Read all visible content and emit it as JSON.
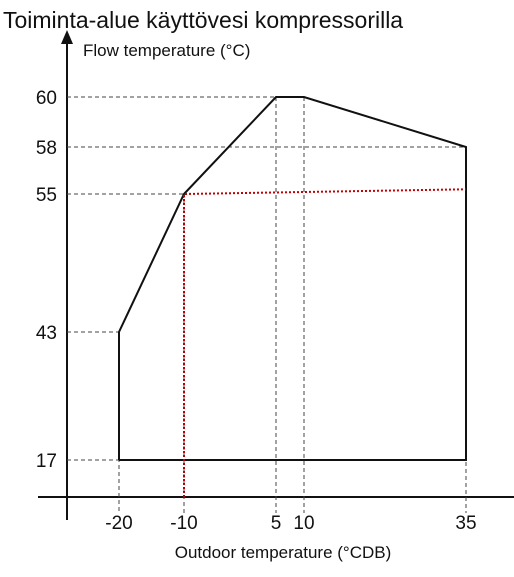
{
  "chart_data": {
    "type": "line",
    "title": "Toiminta-alue käyttövesi kompressorilla",
    "ylabel": "Flow temperature (°C)",
    "xlabel": "Outdoor temperature (°CDB)",
    "x_ticks": [
      {
        "value": -20,
        "label": "-20"
      },
      {
        "value": -10,
        "label": "-10"
      },
      {
        "value": 5,
        "label": "5"
      },
      {
        "value": 10,
        "label": "10"
      },
      {
        "value": 35,
        "label": "35"
      }
    ],
    "y_ticks": [
      {
        "value": 17,
        "label": "17"
      },
      {
        "value": 43,
        "label": "43"
      },
      {
        "value": 55,
        "label": "55"
      },
      {
        "value": 58,
        "label": "58"
      },
      {
        "value": 60,
        "label": "60"
      }
    ],
    "series": [
      {
        "style": "solid",
        "color": "#111111",
        "points": [
          [
            -20,
            17
          ],
          [
            -20,
            43
          ],
          [
            -10,
            55
          ],
          [
            5,
            60
          ],
          [
            10,
            60
          ],
          [
            35,
            58
          ],
          [
            35,
            17
          ],
          [
            -20,
            17
          ]
        ]
      }
    ],
    "reference_lines": [
      {
        "style": "dotted",
        "color": "#c00000",
        "points": [
          [
            -10,
            10
          ],
          [
            -10,
            55
          ],
          [
            35,
            55.3
          ]
        ]
      }
    ],
    "grid": false,
    "guide_lines": "dashed"
  }
}
